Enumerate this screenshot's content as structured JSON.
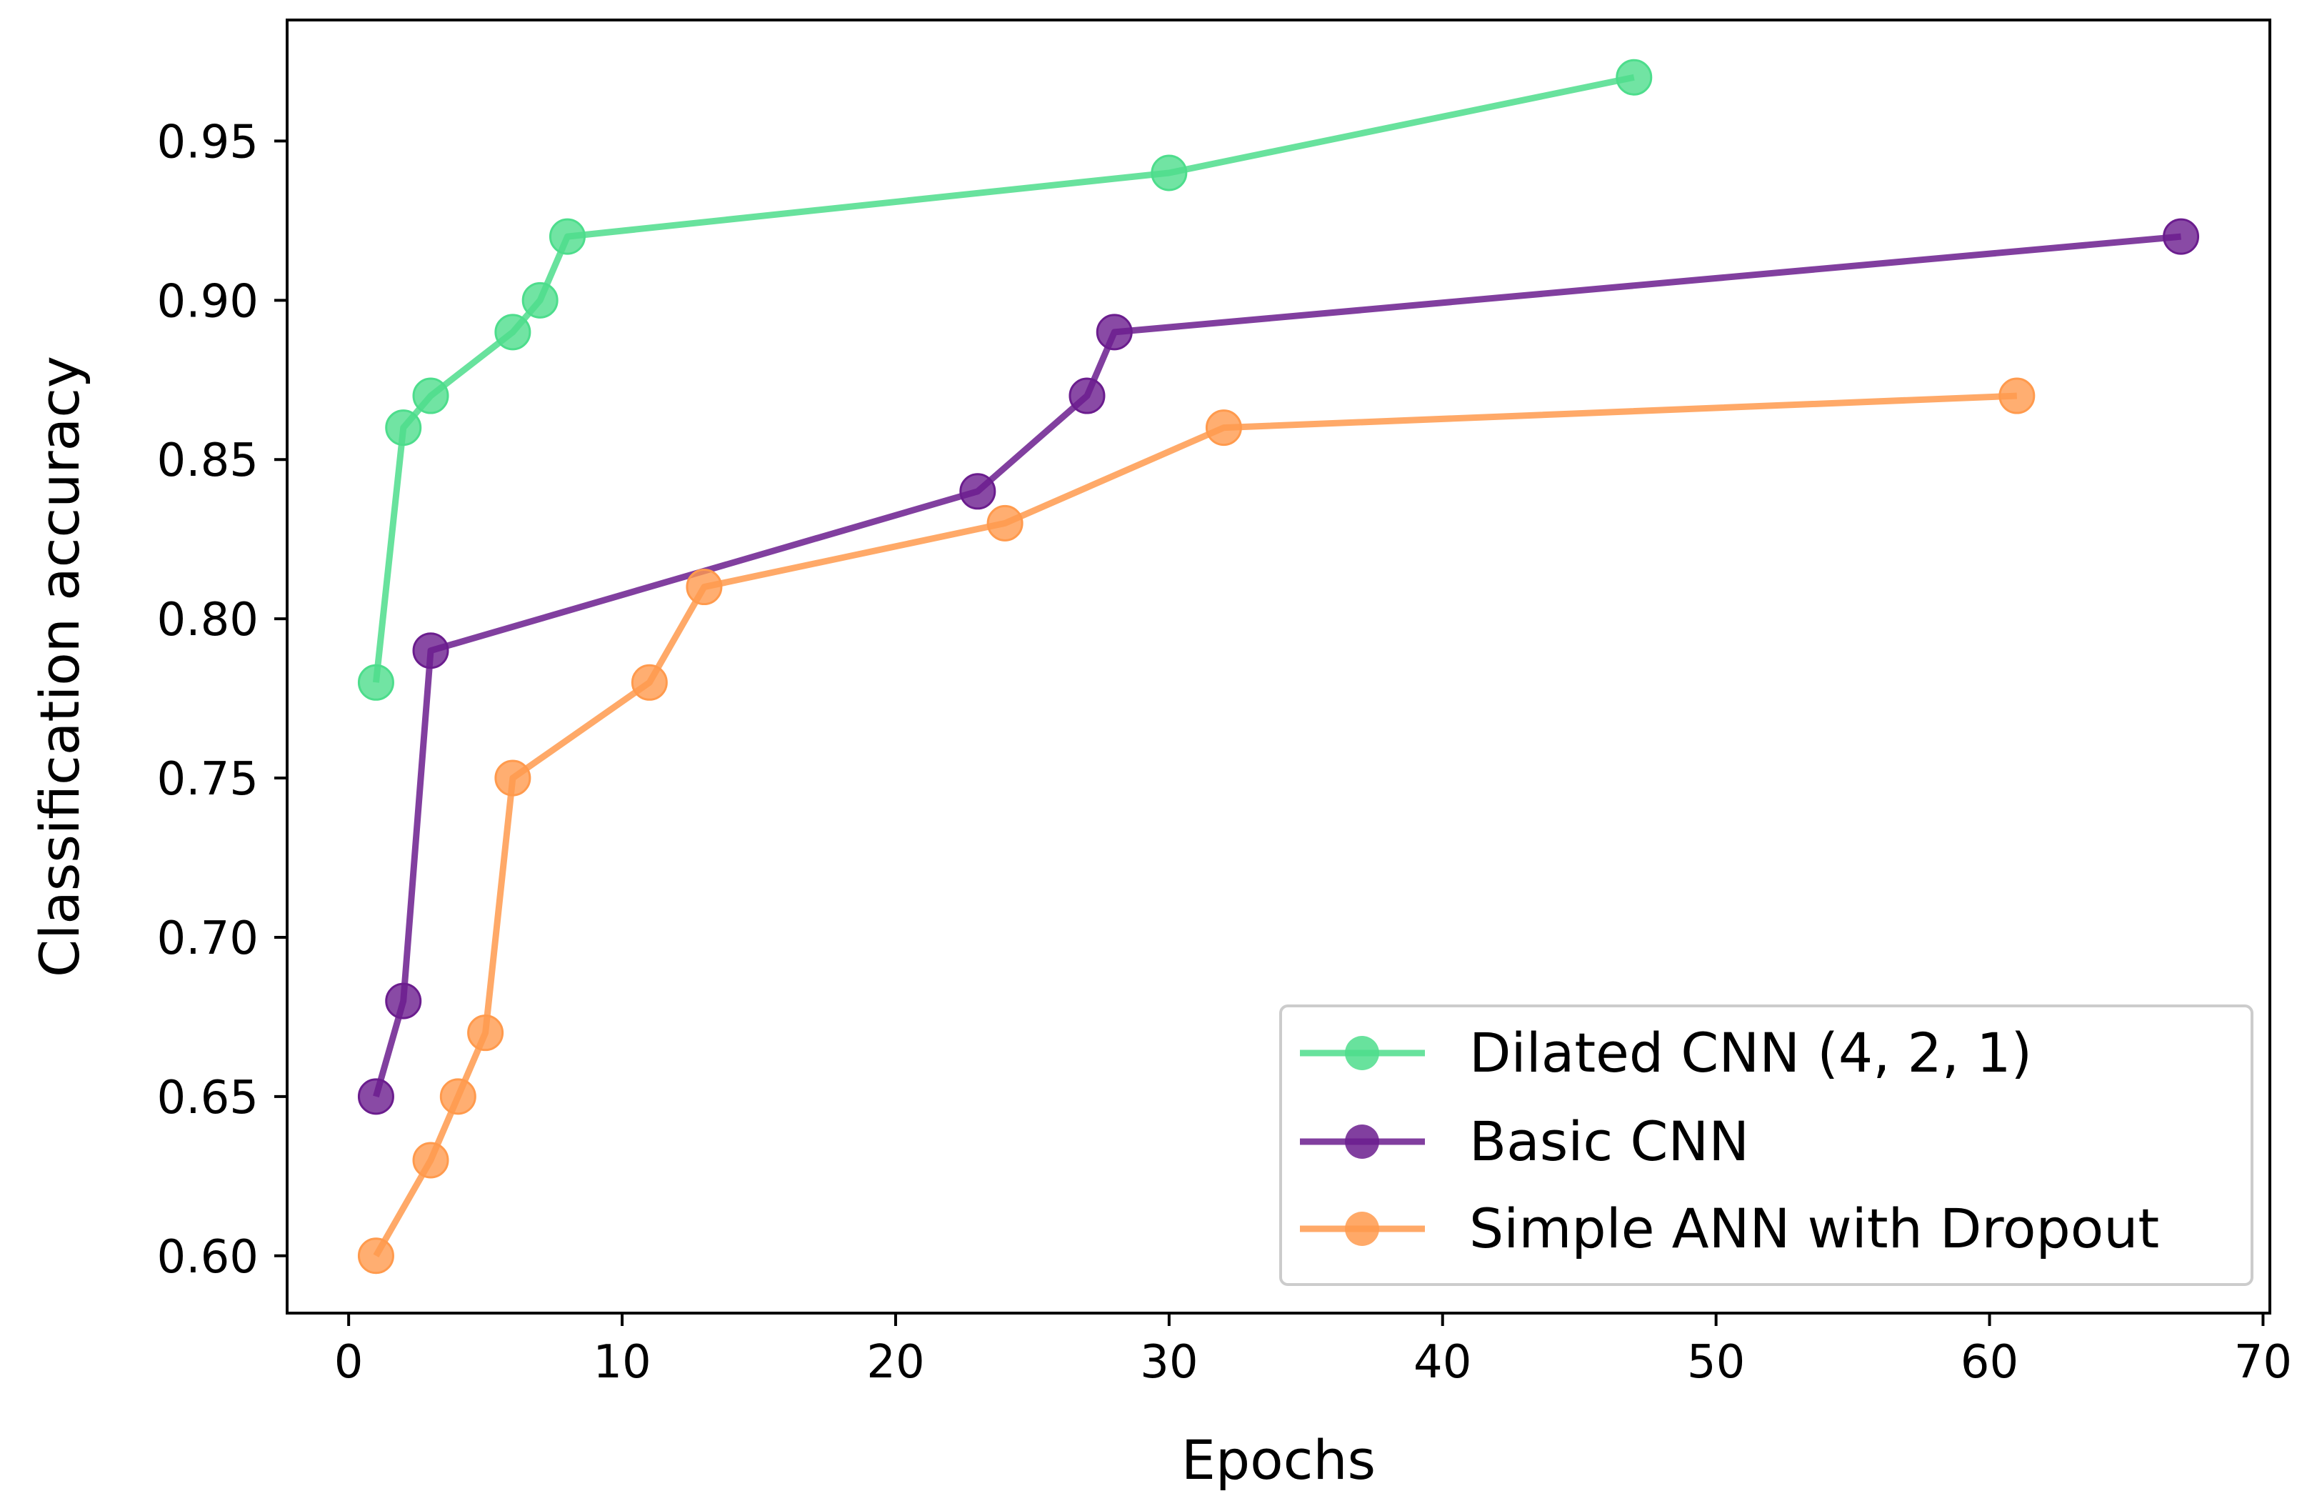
{
  "chart_data": {
    "type": "line",
    "title": "",
    "xlabel": "Epochs",
    "ylabel": "Classification accuracy",
    "xlim": [
      -2.25,
      70.25
    ],
    "ylim": [
      0.582,
      0.988
    ],
    "xticks": [
      0,
      10,
      20,
      30,
      40,
      50,
      60,
      70
    ],
    "yticks": [
      0.6,
      0.65,
      0.7,
      0.75,
      0.8,
      0.85,
      0.9,
      0.95
    ],
    "grid": false,
    "legend_position": "lower-right",
    "series": [
      {
        "name": "Dilated CNN (4, 2, 1)",
        "color": "#4ddd8c",
        "x": [
          1,
          2,
          3,
          6,
          7,
          8,
          30,
          47
        ],
        "y": [
          0.78,
          0.86,
          0.87,
          0.89,
          0.9,
          0.92,
          0.94,
          0.97
        ]
      },
      {
        "name": "Basic CNN",
        "color": "#6b1d8e",
        "x": [
          1,
          2,
          3,
          23,
          27,
          28,
          67
        ],
        "y": [
          0.65,
          0.68,
          0.79,
          0.84,
          0.87,
          0.89,
          0.92
        ]
      },
      {
        "name": "Simple ANN with Dropout",
        "color": "#ff9a4d",
        "x": [
          1,
          3,
          4,
          5,
          6,
          11,
          13,
          24,
          32,
          61
        ],
        "y": [
          0.6,
          0.63,
          0.65,
          0.67,
          0.75,
          0.78,
          0.81,
          0.83,
          0.86,
          0.87
        ]
      }
    ]
  }
}
